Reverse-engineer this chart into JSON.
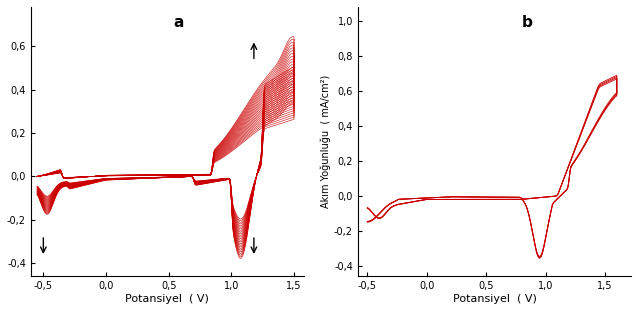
{
  "color": "#cc0000",
  "background": "#ffffff",
  "panel_a": {
    "label": "a",
    "xlabel": "Potansiyel  ( V)",
    "xlim": [
      -0.6,
      1.58
    ],
    "ylim": [
      -0.46,
      0.78
    ],
    "xticks": [
      -0.5,
      0.0,
      0.5,
      1.0,
      1.5
    ],
    "xticklabels": [
      "-0,5",
      "0,0",
      "0,5",
      "1,0",
      "1,5"
    ],
    "yticks": [
      -0.4,
      -0.2,
      0.0,
      0.2,
      0.4,
      0.6
    ],
    "yticklabels": [
      "-0,4",
      "-0,2",
      "0,0",
      "0,2",
      "0,4",
      "0,6"
    ],
    "n_cycles": 25
  },
  "panel_b": {
    "label": "b",
    "xlabel": "Potansiyel  ( V)",
    "ylabel": "Akım Yoğunluğu  ( mA/cm²)",
    "xlim": [
      -0.58,
      1.72
    ],
    "ylim": [
      -0.46,
      1.08
    ],
    "xticks": [
      -0.5,
      0.0,
      0.5,
      1.0,
      1.5
    ],
    "xticklabels": [
      "-0,5",
      "0,0",
      "0,5",
      "1,0",
      "1,5"
    ],
    "yticks": [
      -0.4,
      -0.2,
      0.0,
      0.2,
      0.4,
      0.6,
      0.8,
      1.0
    ],
    "yticklabels": [
      "-0,4",
      "-0,2",
      "0,0",
      "0,2",
      "0,4",
      "0,6",
      "0,8",
      "1,0"
    ],
    "n_cycles": 4
  }
}
